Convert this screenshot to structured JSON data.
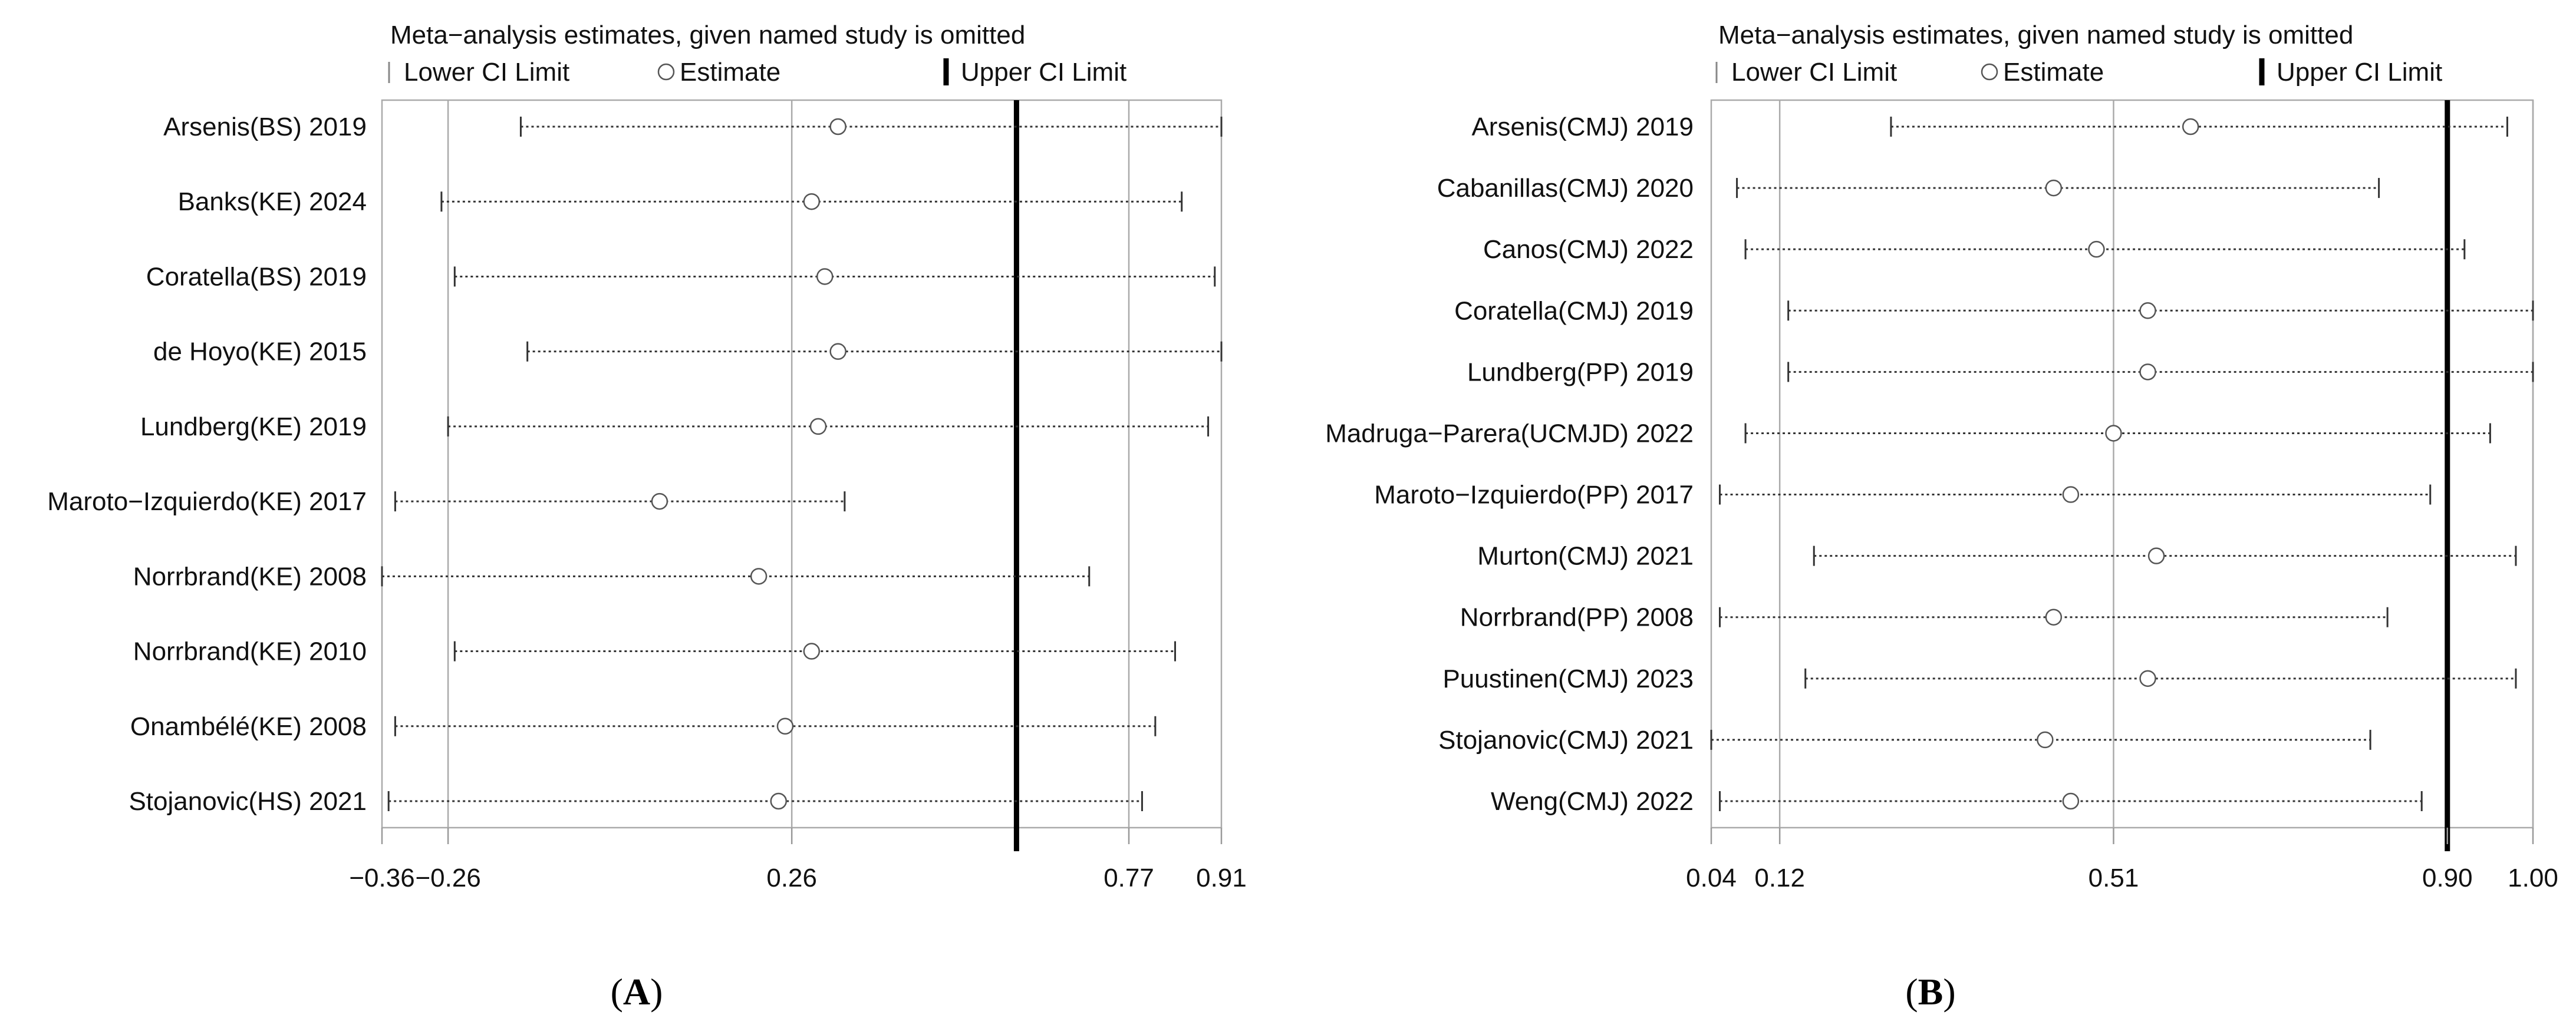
{
  "chart_data": [
    {
      "type": "forest",
      "title": "Meta−analysis estimates, given named study is omitted",
      "panel_label": "A",
      "legend": {
        "lower": "Lower CI Limit",
        "estimate": "Estimate",
        "upper": "Upper CI Limit"
      },
      "xlim": [
        -0.36,
        0.91
      ],
      "x_ticks": [
        {
          "value": -0.36,
          "label": "−0.36"
        },
        {
          "value": -0.26,
          "label": "−0.26"
        },
        {
          "value": 0.26,
          "label": "0.26"
        },
        {
          "value": 0.77,
          "label": "0.77"
        },
        {
          "value": 0.91,
          "label": "0.91"
        }
      ],
      "reference_lines": [
        -0.26,
        0.26,
        0.77
      ],
      "upper_ci_line": 0.6,
      "studies": [
        {
          "label": "Arsenis(BS) 2019",
          "lower": -0.15,
          "estimate": 0.33,
          "upper": 0.91
        },
        {
          "label": "Banks(KE) 2024",
          "lower": -0.27,
          "estimate": 0.29,
          "upper": 0.85
        },
        {
          "label": "Coratella(BS) 2019",
          "lower": -0.25,
          "estimate": 0.31,
          "upper": 0.9
        },
        {
          "label": "de Hoyo(KE) 2015",
          "lower": -0.14,
          "estimate": 0.33,
          "upper": 0.91
        },
        {
          "label": "Lundberg(KE) 2019",
          "lower": -0.26,
          "estimate": 0.3,
          "upper": 0.89
        },
        {
          "label": "Maroto−Izquierdo(KE) 2017",
          "lower": -0.34,
          "estimate": 0.06,
          "upper": 0.34
        },
        {
          "label": "Norrbrand(KE) 2008",
          "lower": -0.36,
          "estimate": 0.21,
          "upper": 0.71
        },
        {
          "label": "Norrbrand(KE) 2010",
          "lower": -0.25,
          "estimate": 0.29,
          "upper": 0.84
        },
        {
          "label": "Onambélé(KE) 2008",
          "lower": -0.34,
          "estimate": 0.25,
          "upper": 0.81
        },
        {
          "label": "Stojanovic(HS) 2021",
          "lower": -0.35,
          "estimate": 0.24,
          "upper": 0.79
        }
      ]
    },
    {
      "type": "forest",
      "title": "Meta−analysis estimates, given named study is omitted",
      "panel_label": "B",
      "legend": {
        "lower": "Lower CI Limit",
        "estimate": "Estimate",
        "upper": "Upper CI Limit"
      },
      "xlim": [
        0.04,
        1.0
      ],
      "x_ticks": [
        {
          "value": 0.04,
          "label": "0.04"
        },
        {
          "value": 0.12,
          "label": "0.12"
        },
        {
          "value": 0.51,
          "label": "0.51"
        },
        {
          "value": 0.9,
          "label": "0.90"
        },
        {
          "value": 1.0,
          "label": "1.00"
        }
      ],
      "reference_lines": [
        0.12,
        0.51,
        1.0
      ],
      "upper_ci_line": 0.9,
      "studies": [
        {
          "label": "Arsenis(CMJ) 2019",
          "lower": 0.25,
          "estimate": 0.6,
          "upper": 0.97
        },
        {
          "label": "Cabanillas(CMJ) 2020",
          "lower": 0.07,
          "estimate": 0.44,
          "upper": 0.82
        },
        {
          "label": "Canos(CMJ) 2022",
          "lower": 0.08,
          "estimate": 0.49,
          "upper": 0.92
        },
        {
          "label": "Coratella(CMJ) 2019",
          "lower": 0.13,
          "estimate": 0.55,
          "upper": 1.0
        },
        {
          "label": "Lundberg(PP) 2019",
          "lower": 0.13,
          "estimate": 0.55,
          "upper": 1.0
        },
        {
          "label": "Madruga−Parera(UCMJD) 2022",
          "lower": 0.08,
          "estimate": 0.51,
          "upper": 0.95
        },
        {
          "label": "Maroto−Izquierdo(PP) 2017",
          "lower": 0.05,
          "estimate": 0.46,
          "upper": 0.88
        },
        {
          "label": "Murton(CMJ) 2021",
          "lower": 0.16,
          "estimate": 0.56,
          "upper": 0.98
        },
        {
          "label": "Norrbrand(PP) 2008",
          "lower": 0.05,
          "estimate": 0.44,
          "upper": 0.83
        },
        {
          "label": "Puustinen(CMJ) 2023",
          "lower": 0.15,
          "estimate": 0.55,
          "upper": 0.98
        },
        {
          "label": "Stojanovic(CMJ) 2021",
          "lower": 0.04,
          "estimate": 0.43,
          "upper": 0.81
        },
        {
          "label": "Weng(CMJ) 2022",
          "lower": 0.05,
          "estimate": 0.46,
          "upper": 0.87
        }
      ]
    }
  ]
}
